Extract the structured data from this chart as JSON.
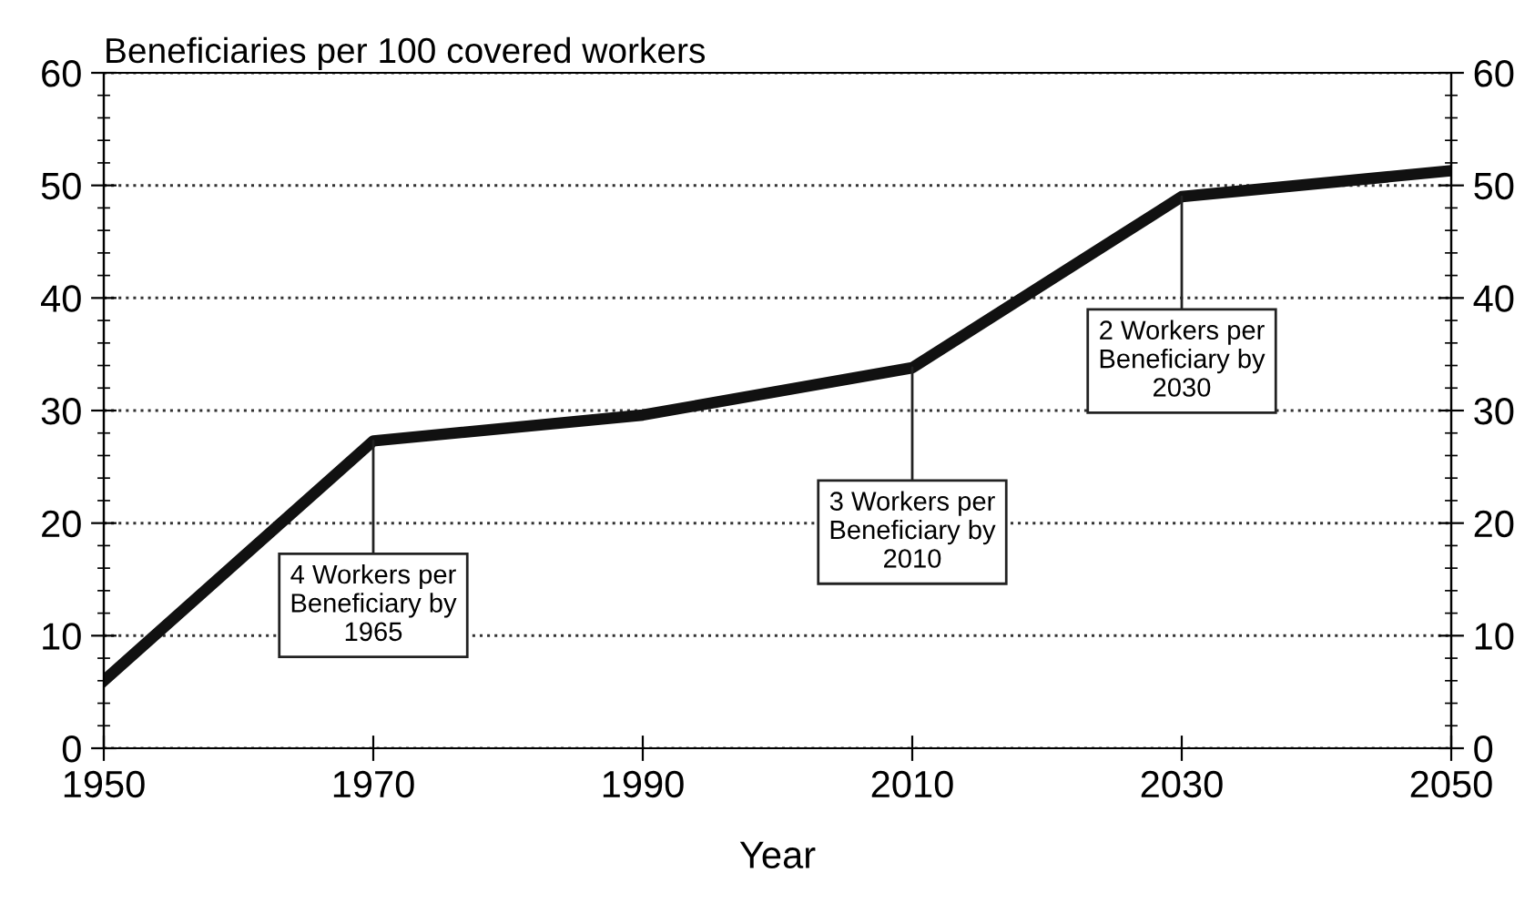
{
  "chart_data": {
    "type": "line",
    "title": "Beneficiaries per 100 covered workers",
    "xlabel": "Year",
    "x": [
      1950,
      1970,
      1990,
      2010,
      2030,
      2050
    ],
    "series": [
      {
        "color": "#111111",
        "values": [
          6,
          27.3,
          29.6,
          33.8,
          49,
          51.3
        ]
      }
    ],
    "xlim": [
      1950,
      2050
    ],
    "xticks": [
      1950,
      1970,
      1990,
      2010,
      2030,
      2050
    ],
    "ylim": [
      0,
      60
    ],
    "yticks": [
      0,
      10,
      20,
      30,
      40,
      50,
      60
    ],
    "y2lim": [
      0,
      60
    ],
    "y2ticks": [
      0,
      10,
      20,
      30,
      40,
      50,
      60
    ],
    "grid": "y",
    "line_style": "solid",
    "marker": "none",
    "annotations": [
      {
        "text": "4 Workers per\nBeneficiary by\n1965",
        "x": 1970,
        "y": 27.3
      },
      {
        "text": "3 Workers per\nBeneficiary by\n2010",
        "x": 2010,
        "y": 33.8
      },
      {
        "text": "2 Workers per\nBeneficiary by\n2030",
        "x": 2030,
        "y": 49
      }
    ]
  }
}
